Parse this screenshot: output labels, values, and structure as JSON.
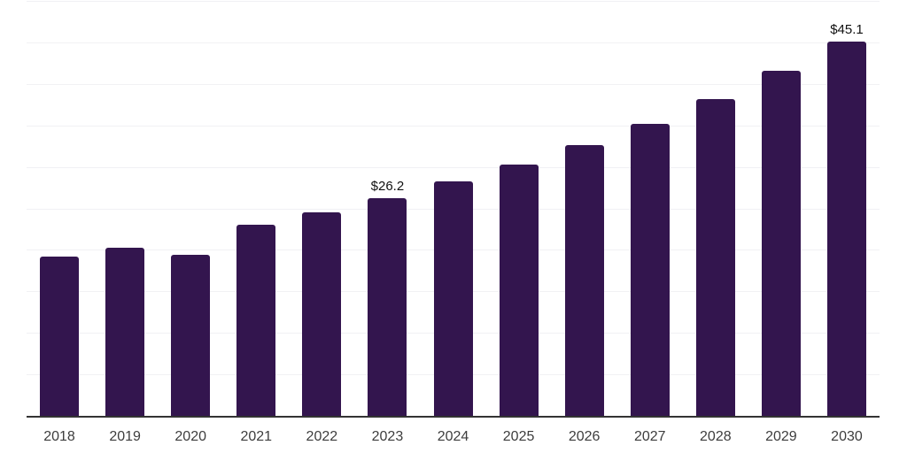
{
  "chart_data": {
    "type": "bar",
    "title": "",
    "xlabel": "",
    "ylabel": "",
    "categories": [
      "2018",
      "2019",
      "2020",
      "2021",
      "2022",
      "2023",
      "2024",
      "2025",
      "2026",
      "2027",
      "2028",
      "2029",
      "2030"
    ],
    "values": [
      19.2,
      20.3,
      19.4,
      23.0,
      24.5,
      26.2,
      28.2,
      30.3,
      32.6,
      35.2,
      38.2,
      41.6,
      45.1
    ],
    "data_labels": [
      "",
      "",
      "",
      "",
      "",
      "$26.2",
      "",
      "",
      "",
      "",
      "",
      "",
      "$45.1"
    ],
    "ylim": [
      0,
      50
    ],
    "gridline_step": 5,
    "grid": "horizontal",
    "legend": "none",
    "y_axis_labels_visible": false
  },
  "colors": {
    "bar": "#33154e",
    "gridline": "#f1f1f4",
    "axis_line": "#333333",
    "value_label_text": "#111111",
    "tick_label_text": "#3d3d3d",
    "background": "#ffffff"
  }
}
